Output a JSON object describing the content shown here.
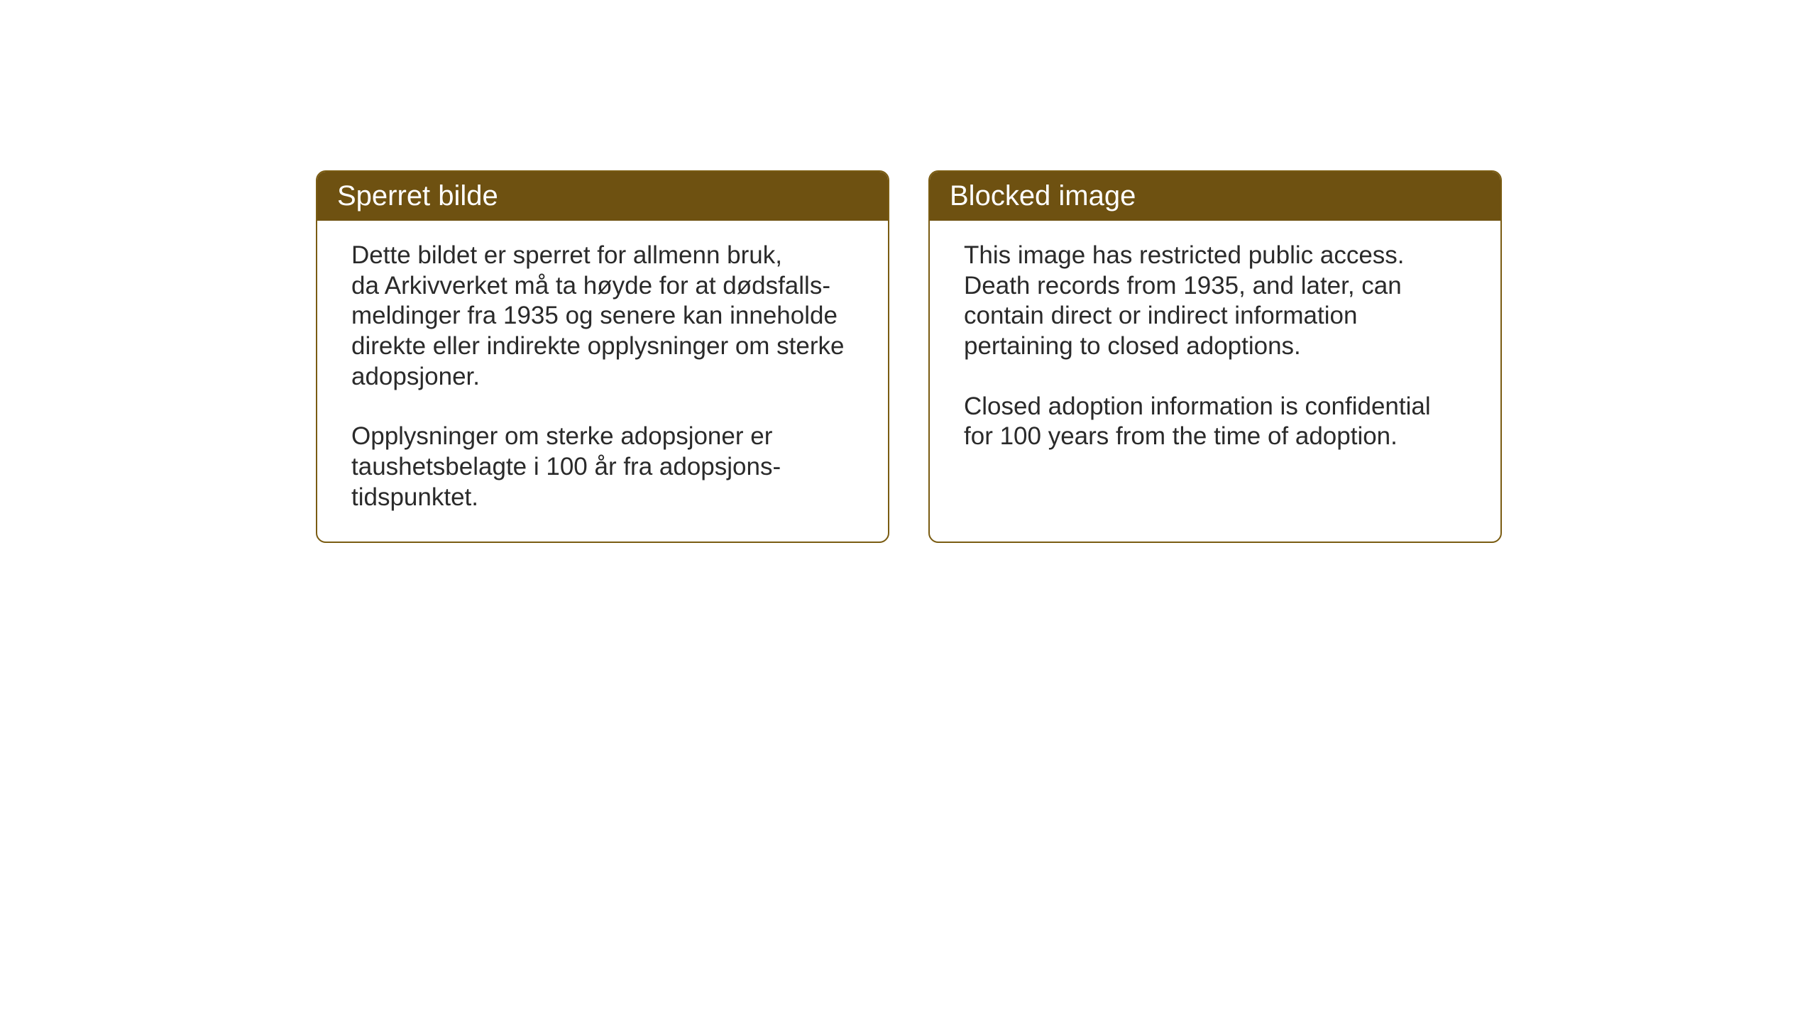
{
  "layout": {
    "background_color": "#ffffff",
    "card_border_color": "#7a5c12",
    "card_border_width": 2,
    "card_border_radius": 14,
    "header_bg_color": "#6e5111",
    "header_text_color": "#ffffff",
    "body_text_color": "#2a2a2a",
    "title_fontsize": 40,
    "body_fontsize": 35
  },
  "cards": {
    "norwegian": {
      "title": "Sperret bilde",
      "paragraph1": "Dette bildet er sperret for allmenn bruk,\nda Arkivverket må ta høyde for at dødsfalls-\nmeldinger fra 1935 og senere kan inneholde\ndirekte eller indirekte opplysninger om sterke\nadopsjoner.",
      "paragraph2": "Opplysninger om sterke adopsjoner er\ntaushetsbelagte i 100 år fra adopsjons-\ntidspunktet."
    },
    "english": {
      "title": "Blocked image",
      "paragraph1": "This image has restricted public access.\nDeath records from 1935, and later, can\ncontain direct or indirect information\npertaining to closed adoptions.",
      "paragraph2": "Closed adoption information is confidential\nfor 100 years from the time of adoption."
    }
  }
}
